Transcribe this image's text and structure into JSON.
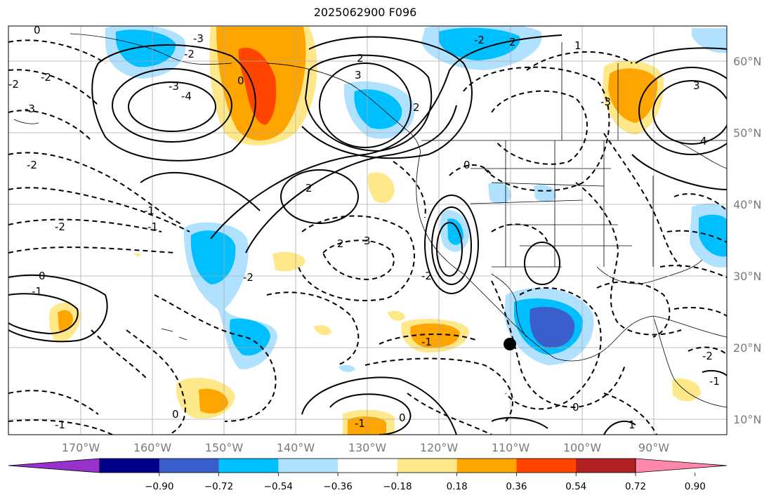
{
  "title": "2025062900 F096",
  "map": {
    "lon_labels": [
      "170°W",
      "160°W",
      "150°W",
      "140°W",
      "130°W",
      "120°W",
      "110°W",
      "100°W",
      "90°W"
    ],
    "lat_labels": [
      "60°N",
      "50°N",
      "40°N",
      "30°N",
      "20°N",
      "10°N"
    ],
    "contour_labels": [
      "-3",
      "-2",
      "2",
      "3",
      "-2",
      "0",
      "-3",
      "-4",
      "-3",
      "-2",
      "-1",
      "-2",
      "-1",
      "0",
      "2",
      "2",
      "3",
      "-3",
      "2",
      "-2",
      "-2",
      "0",
      "0",
      "-2",
      "-1",
      "-1",
      "0",
      "-1",
      "-1",
      "0",
      "0",
      "1",
      "4",
      "3",
      "2",
      "1",
      "-2",
      "-1",
      "-2"
    ],
    "marker": "black-dot"
  },
  "colorbar": {
    "tick_labels": [
      "−0.90",
      "−0.72",
      "−0.54",
      "−0.36",
      "−0.18",
      "0.18",
      "0.36",
      "0.54",
      "0.72",
      "0.90"
    ],
    "colors": [
      "#9932cc",
      "#00008b",
      "#3a5fcd",
      "#00bfff",
      "#b0e2ff",
      "#ffffff",
      "#ffe88a",
      "#ffa500",
      "#ff4500",
      "#b22222",
      "#ff88aa"
    ]
  }
}
